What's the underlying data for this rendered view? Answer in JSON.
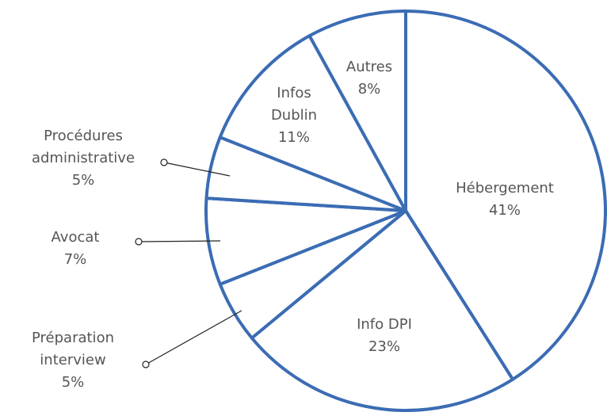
{
  "chart_data": {
    "type": "pie",
    "categories": [
      "Hébergement",
      "Info DPI",
      "Préparation\ninterview",
      "Avocat",
      "Procédures\nadministrative",
      "Infos\nDublin",
      "Autres"
    ],
    "values": [
      41,
      23,
      5,
      7,
      5,
      11,
      8
    ],
    "value_labels": [
      "41%",
      "23%",
      "5%",
      "7%",
      "5%",
      "11%",
      "8%"
    ],
    "color": "#3b6cb4"
  }
}
